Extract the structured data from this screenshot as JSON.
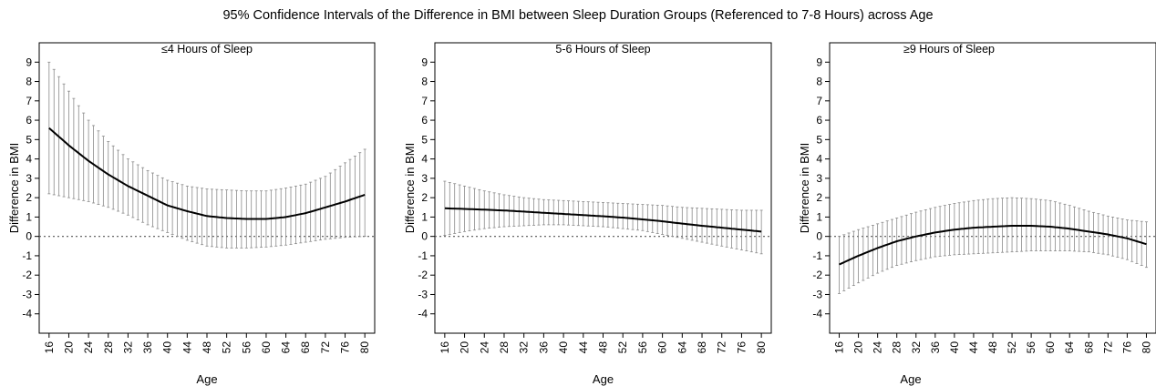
{
  "figure": {
    "title": "95% Confidence Intervals of the Difference in BMI between Sleep Duration Groups (Referenced to 7-8 Hours) across Age"
  },
  "chart_data": [
    {
      "type": "line",
      "title": "≤4 Hours of Sleep",
      "xlabel": "Age",
      "ylabel": "Difference in BMI",
      "xlim": [
        14,
        82
      ],
      "ylim": [
        -5,
        10
      ],
      "xticks": [
        "16",
        "20",
        "24",
        "28",
        "32",
        "36",
        "40",
        "44",
        "48",
        "52",
        "56",
        "60",
        "64",
        "68",
        "72",
        "76",
        "80"
      ],
      "yticks": [
        "9",
        "8",
        "7",
        "6",
        "5",
        "4",
        "3",
        "2",
        "1",
        "0",
        "-1",
        "-2",
        "-3",
        "-4"
      ],
      "reference_line": 0,
      "grid": false,
      "x": [
        16,
        20,
        24,
        28,
        32,
        36,
        40,
        44,
        48,
        52,
        56,
        60,
        64,
        68,
        72,
        76,
        80
      ],
      "series": [
        {
          "values": [
            5.6,
            4.7,
            3.9,
            3.2,
            2.6,
            2.1,
            1.6,
            1.3,
            1.05,
            0.95,
            0.9,
            0.9,
            1.0,
            1.2,
            1.5,
            1.8,
            2.15
          ]
        }
      ],
      "ci_lower": [
        2.2,
        2.0,
        1.8,
        1.5,
        1.1,
        0.6,
        0.2,
        -0.2,
        -0.5,
        -0.6,
        -0.6,
        -0.55,
        -0.45,
        -0.3,
        -0.15,
        -0.05,
        0.0
      ],
      "ci_upper": [
        9.0,
        7.5,
        6.0,
        4.9,
        4.0,
        3.4,
        2.9,
        2.6,
        2.45,
        2.4,
        2.35,
        2.35,
        2.5,
        2.7,
        3.1,
        3.8,
        4.5
      ]
    },
    {
      "type": "line",
      "title": "5-6 Hours of Sleep",
      "xlabel": "Age",
      "ylabel": "Difference in BMI",
      "xlim": [
        14,
        82
      ],
      "ylim": [
        -5,
        10
      ],
      "xticks": [
        "16",
        "20",
        "24",
        "28",
        "32",
        "36",
        "40",
        "44",
        "48",
        "52",
        "56",
        "60",
        "64",
        "68",
        "72",
        "76",
        "80"
      ],
      "yticks": [
        "9",
        "8",
        "7",
        "6",
        "5",
        "4",
        "3",
        "2",
        "1",
        "0",
        "-1",
        "-2",
        "-3",
        "-4"
      ],
      "reference_line": 0,
      "grid": false,
      "x": [
        16,
        20,
        24,
        28,
        32,
        36,
        40,
        44,
        48,
        52,
        56,
        60,
        64,
        68,
        72,
        76,
        80
      ],
      "series": [
        {
          "values": [
            1.45,
            1.42,
            1.38,
            1.34,
            1.28,
            1.22,
            1.16,
            1.1,
            1.04,
            0.97,
            0.88,
            0.78,
            0.66,
            0.55,
            0.45,
            0.35,
            0.25
          ]
        }
      ],
      "ci_lower": [
        0.05,
        0.25,
        0.4,
        0.5,
        0.55,
        0.6,
        0.6,
        0.55,
        0.5,
        0.4,
        0.3,
        0.1,
        -0.1,
        -0.3,
        -0.5,
        -0.7,
        -0.9
      ],
      "ci_upper": [
        2.85,
        2.6,
        2.35,
        2.15,
        2.0,
        1.9,
        1.85,
        1.8,
        1.75,
        1.7,
        1.65,
        1.6,
        1.5,
        1.45,
        1.4,
        1.35,
        1.35
      ]
    },
    {
      "type": "line",
      "title": "≥9 Hours of Sleep",
      "xlabel": "Age",
      "ylabel": "Difference in BMI",
      "xlim": [
        14,
        82
      ],
      "ylim": [
        -5,
        10
      ],
      "xticks": [
        "16",
        "20",
        "24",
        "28",
        "32",
        "36",
        "40",
        "44",
        "48",
        "52",
        "56",
        "60",
        "64",
        "68",
        "72",
        "76",
        "80"
      ],
      "yticks": [
        "9",
        "8",
        "7",
        "6",
        "5",
        "4",
        "3",
        "2",
        "1",
        "0",
        "-1",
        "-2",
        "-3",
        "-4"
      ],
      "reference_line": 0,
      "grid": false,
      "x": [
        16,
        20,
        24,
        28,
        32,
        36,
        40,
        44,
        48,
        52,
        56,
        60,
        64,
        68,
        72,
        76,
        80
      ],
      "series": [
        {
          "values": [
            -1.45,
            -1.0,
            -0.6,
            -0.25,
            0.0,
            0.2,
            0.35,
            0.45,
            0.5,
            0.55,
            0.55,
            0.5,
            0.4,
            0.25,
            0.1,
            -0.1,
            -0.4
          ]
        }
      ],
      "ci_lower": [
        -2.95,
        -2.4,
        -1.9,
        -1.5,
        -1.25,
        -1.05,
        -0.95,
        -0.9,
        -0.85,
        -0.8,
        -0.75,
        -0.75,
        -0.75,
        -0.8,
        -0.95,
        -1.2,
        -1.6
      ],
      "ci_upper": [
        0.0,
        0.35,
        0.65,
        0.95,
        1.25,
        1.5,
        1.7,
        1.85,
        1.95,
        2.0,
        1.95,
        1.85,
        1.6,
        1.3,
        1.05,
        0.85,
        0.75
      ]
    }
  ]
}
